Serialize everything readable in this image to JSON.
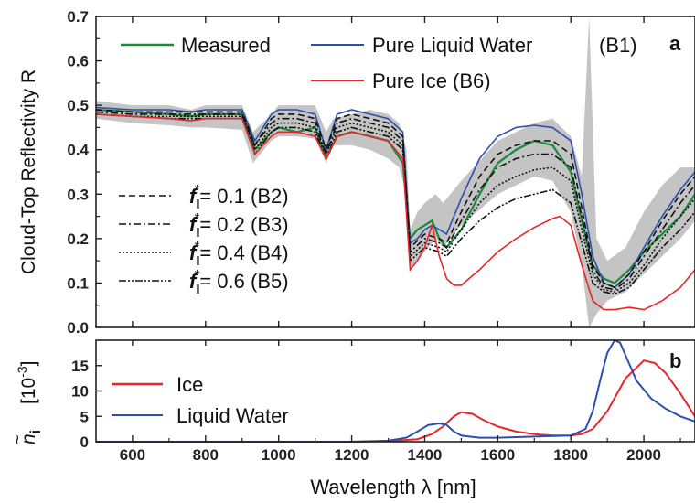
{
  "chart_data": [
    {
      "panel": "a",
      "type": "line",
      "ylabel": "Cloud-Top Reflectivity R",
      "xlim": [
        500,
        2140
      ],
      "ylim": [
        0,
        0.7
      ],
      "yticks": [
        "0.0",
        "0.1",
        "0.2",
        "0.3",
        "0.4",
        "0.5",
        "0.6",
        "0.7"
      ],
      "legend_top": [
        {
          "label": "Measured",
          "color": "#1a8a3a",
          "style": "solid"
        },
        {
          "label": "Pure Liquid Water",
          "color": "#2c4fae",
          "style": "solid"
        },
        {
          "label": "(B1)",
          "color": "#000000",
          "style": "none"
        },
        {
          "label": "Pure Ice (B6)",
          "color": "#e8262a",
          "style": "solid"
        }
      ],
      "legend_mid": [
        {
          "prefix": "f",
          "sub": "I",
          "sup": "*",
          "value": "= 0.1 (B2)",
          "style": "dashed"
        },
        {
          "prefix": "f",
          "sub": "I",
          "sup": "*",
          "value": "= 0.2 (B3)",
          "style": "dashdot"
        },
        {
          "prefix": "f",
          "sub": "I",
          "sup": "*",
          "value": "= 0.4 (B4)",
          "style": "dotted"
        },
        {
          "prefix": "f",
          "sub": "I",
          "sup": "*",
          "value": "= 0.6 (B5)",
          "style": "dashdotdot"
        }
      ],
      "uncertainty_band": {
        "x": [
          500,
          550,
          600,
          700,
          760,
          800,
          900,
          930,
          980,
          1000,
          1050,
          1100,
          1130,
          1150,
          1200,
          1250,
          1300,
          1330,
          1350,
          1360,
          1380,
          1400,
          1430,
          1450,
          1500,
          1600,
          1700,
          1750,
          1800,
          1830,
          1850,
          1870,
          1900,
          1950,
          2000,
          2050,
          2100,
          2140
        ],
        "low": [
          0.47,
          0.465,
          0.46,
          0.455,
          0.45,
          0.45,
          0.445,
          0.37,
          0.42,
          0.43,
          0.43,
          0.425,
          0.37,
          0.41,
          0.41,
          0.4,
          0.38,
          0.36,
          0.3,
          0.13,
          0.15,
          0.17,
          0.2,
          0.18,
          0.23,
          0.3,
          0.34,
          0.33,
          0.26,
          0.14,
          0.0,
          0.03,
          0.06,
          0.08,
          0.12,
          0.16,
          0.2,
          0.24
        ],
        "high": [
          0.51,
          0.505,
          0.5,
          0.5,
          0.49,
          0.5,
          0.5,
          0.44,
          0.48,
          0.5,
          0.5,
          0.5,
          0.44,
          0.47,
          0.48,
          0.49,
          0.48,
          0.46,
          0.4,
          0.22,
          0.26,
          0.28,
          0.3,
          0.28,
          0.33,
          0.42,
          0.46,
          0.47,
          0.43,
          0.34,
          0.7,
          0.2,
          0.15,
          0.18,
          0.26,
          0.32,
          0.36,
          0.36
        ]
      },
      "series": [
        {
          "name": "Measured",
          "color": "#1a8a3a",
          "dash": "",
          "x": [
            500,
            600,
            700,
            760,
            800,
            900,
            935,
            980,
            1000,
            1050,
            1100,
            1130,
            1160,
            1200,
            1250,
            1300,
            1340,
            1360,
            1380,
            1400,
            1420,
            1440,
            1460,
            1500,
            1550,
            1600,
            1650,
            1700,
            1750,
            1800,
            1830,
            1860,
            1890,
            1920,
            1960,
            2000,
            2050,
            2100,
            2140
          ],
          "y": [
            0.49,
            0.485,
            0.48,
            0.475,
            0.48,
            0.48,
            0.4,
            0.44,
            0.45,
            0.44,
            0.45,
            0.38,
            0.43,
            0.44,
            0.43,
            0.42,
            0.37,
            0.2,
            0.22,
            0.23,
            0.24,
            0.2,
            0.18,
            0.22,
            0.3,
            0.37,
            0.4,
            0.42,
            0.41,
            0.35,
            0.24,
            0.14,
            0.11,
            0.1,
            0.13,
            0.17,
            0.21,
            0.25,
            0.3
          ]
        },
        {
          "name": "Pure Liquid Water",
          "color": "#2c4fae",
          "dash": "",
          "x": [
            500,
            600,
            700,
            760,
            800,
            900,
            935,
            980,
            1000,
            1050,
            1100,
            1130,
            1160,
            1200,
            1250,
            1300,
            1340,
            1360,
            1380,
            1400,
            1420,
            1440,
            1460,
            1500,
            1550,
            1600,
            1650,
            1700,
            1750,
            1800,
            1830,
            1860,
            1890,
            1920,
            1960,
            2000,
            2050,
            2100,
            2140
          ],
          "y": [
            0.495,
            0.49,
            0.49,
            0.485,
            0.49,
            0.49,
            0.42,
            0.48,
            0.49,
            0.49,
            0.48,
            0.4,
            0.48,
            0.49,
            0.48,
            0.47,
            0.44,
            0.19,
            0.2,
            0.22,
            0.23,
            0.22,
            0.21,
            0.29,
            0.38,
            0.43,
            0.45,
            0.455,
            0.45,
            0.42,
            0.3,
            0.16,
            0.1,
            0.09,
            0.12,
            0.18,
            0.25,
            0.31,
            0.35
          ]
        },
        {
          "name": "B2",
          "color": "#111111",
          "dash": "7,4",
          "x": [
            500,
            600,
            700,
            800,
            900,
            935,
            980,
            1000,
            1050,
            1100,
            1130,
            1160,
            1200,
            1250,
            1300,
            1340,
            1360,
            1400,
            1440,
            1460,
            1500,
            1550,
            1600,
            1650,
            1700,
            1750,
            1800,
            1830,
            1860,
            1890,
            1920,
            1960,
            2000,
            2050,
            2100,
            2140
          ],
          "y": [
            0.49,
            0.485,
            0.485,
            0.485,
            0.485,
            0.41,
            0.47,
            0.48,
            0.48,
            0.47,
            0.4,
            0.47,
            0.48,
            0.47,
            0.46,
            0.43,
            0.18,
            0.21,
            0.2,
            0.19,
            0.26,
            0.34,
            0.39,
            0.41,
            0.42,
            0.42,
            0.39,
            0.27,
            0.14,
            0.1,
            0.09,
            0.12,
            0.17,
            0.24,
            0.3,
            0.34
          ]
        },
        {
          "name": "B3",
          "color": "#111111",
          "dash": "8,3,2,3",
          "x": [
            500,
            600,
            700,
            800,
            900,
            935,
            980,
            1000,
            1050,
            1100,
            1130,
            1160,
            1200,
            1250,
            1300,
            1340,
            1360,
            1400,
            1440,
            1460,
            1500,
            1550,
            1600,
            1650,
            1700,
            1750,
            1800,
            1830,
            1860,
            1890,
            1920,
            1960,
            2000,
            2050,
            2100,
            2140
          ],
          "y": [
            0.485,
            0.48,
            0.48,
            0.48,
            0.48,
            0.41,
            0.46,
            0.47,
            0.47,
            0.46,
            0.39,
            0.46,
            0.47,
            0.46,
            0.45,
            0.42,
            0.17,
            0.2,
            0.19,
            0.18,
            0.24,
            0.31,
            0.36,
            0.38,
            0.39,
            0.39,
            0.36,
            0.25,
            0.13,
            0.09,
            0.085,
            0.11,
            0.16,
            0.22,
            0.28,
            0.32
          ]
        },
        {
          "name": "B4",
          "color": "#111111",
          "dash": "2,2",
          "x": [
            500,
            600,
            700,
            800,
            900,
            935,
            980,
            1000,
            1050,
            1100,
            1130,
            1160,
            1200,
            1250,
            1300,
            1340,
            1360,
            1400,
            1440,
            1460,
            1500,
            1550,
            1600,
            1650,
            1700,
            1750,
            1800,
            1830,
            1860,
            1890,
            1920,
            1960,
            2000,
            2050,
            2100,
            2140
          ],
          "y": [
            0.48,
            0.475,
            0.475,
            0.475,
            0.475,
            0.4,
            0.45,
            0.46,
            0.46,
            0.45,
            0.39,
            0.45,
            0.46,
            0.45,
            0.44,
            0.41,
            0.16,
            0.19,
            0.18,
            0.17,
            0.22,
            0.28,
            0.32,
            0.34,
            0.355,
            0.36,
            0.33,
            0.22,
            0.12,
            0.085,
            0.08,
            0.1,
            0.14,
            0.2,
            0.25,
            0.29
          ]
        },
        {
          "name": "B5",
          "color": "#111111",
          "dash": "8,2,2,2,2,2",
          "x": [
            500,
            600,
            700,
            800,
            900,
            935,
            980,
            1000,
            1050,
            1100,
            1130,
            1160,
            1200,
            1250,
            1300,
            1340,
            1360,
            1400,
            1440,
            1460,
            1500,
            1550,
            1600,
            1650,
            1700,
            1750,
            1800,
            1830,
            1860,
            1890,
            1920,
            1960,
            2000,
            2050,
            2100,
            2140
          ],
          "y": [
            0.48,
            0.475,
            0.47,
            0.47,
            0.47,
            0.39,
            0.44,
            0.45,
            0.45,
            0.44,
            0.38,
            0.44,
            0.45,
            0.44,
            0.43,
            0.4,
            0.15,
            0.18,
            0.17,
            0.16,
            0.2,
            0.24,
            0.27,
            0.29,
            0.3,
            0.31,
            0.28,
            0.19,
            0.1,
            0.08,
            0.075,
            0.09,
            0.13,
            0.18,
            0.22,
            0.26
          ]
        },
        {
          "name": "Pure Ice (B6)",
          "color": "#e8262a",
          "dash": "",
          "x": [
            500,
            600,
            700,
            760,
            800,
            900,
            935,
            980,
            1000,
            1050,
            1100,
            1130,
            1160,
            1200,
            1250,
            1300,
            1340,
            1360,
            1380,
            1400,
            1420,
            1440,
            1460,
            1480,
            1500,
            1550,
            1600,
            1650,
            1700,
            1750,
            1770,
            1800,
            1830,
            1860,
            1890,
            1920,
            1960,
            2000,
            2050,
            2100,
            2140
          ],
          "y": [
            0.48,
            0.475,
            0.47,
            0.465,
            0.47,
            0.47,
            0.39,
            0.43,
            0.44,
            0.44,
            0.43,
            0.38,
            0.43,
            0.44,
            0.43,
            0.42,
            0.38,
            0.13,
            0.15,
            0.18,
            0.23,
            0.16,
            0.11,
            0.095,
            0.095,
            0.13,
            0.17,
            0.2,
            0.225,
            0.245,
            0.25,
            0.23,
            0.14,
            0.06,
            0.04,
            0.04,
            0.045,
            0.04,
            0.06,
            0.09,
            0.13
          ]
        }
      ]
    },
    {
      "panel": "b",
      "type": "line",
      "xlabel": "Wavelength λ [nm]",
      "ylabel_sym": "n",
      "ylabel_sub": "i",
      "ylabel_unit": "[10",
      "ylabel_exp": "-3",
      "ylabel_close": "]",
      "xlim": [
        500,
        2140
      ],
      "ylim": [
        0,
        20
      ],
      "xticks": [
        "600",
        "800",
        "1000",
        "1200",
        "1400",
        "1600",
        "1800",
        "2000"
      ],
      "yticks": [
        "0",
        "5",
        "10",
        "15"
      ],
      "legend": [
        {
          "label": "Ice",
          "color": "#e8262a"
        },
        {
          "label": "Liquid Water",
          "color": "#2c4fae"
        }
      ],
      "series": [
        {
          "name": "Ice",
          "color": "#e8262a",
          "x": [
            500,
            1200,
            1300,
            1380,
            1420,
            1450,
            1480,
            1500,
            1530,
            1560,
            1600,
            1650,
            1700,
            1750,
            1800,
            1830,
            1860,
            1900,
            1950,
            2000,
            2030,
            2060,
            2100,
            2140
          ],
          "y": [
            0,
            0,
            0.1,
            0.5,
            1.5,
            3.0,
            5.0,
            5.8,
            5.5,
            4.3,
            3.0,
            2.0,
            1.5,
            1.2,
            1.2,
            1.5,
            2.5,
            6.0,
            12.5,
            16.0,
            15.5,
            13.5,
            9.5,
            5.0
          ]
        },
        {
          "name": "Liquid Water",
          "color": "#2c4fae",
          "x": [
            500,
            1200,
            1300,
            1350,
            1380,
            1410,
            1440,
            1460,
            1480,
            1500,
            1550,
            1600,
            1700,
            1800,
            1840,
            1860,
            1880,
            1900,
            1920,
            1935,
            1950,
            1980,
            2020,
            2060,
            2100,
            2140
          ],
          "y": [
            0,
            0,
            0.2,
            0.8,
            2.0,
            3.3,
            3.6,
            3.3,
            2.0,
            1.2,
            0.8,
            0.8,
            1.0,
            1.2,
            2.5,
            6.0,
            12.0,
            17.5,
            20.0,
            19.5,
            17.0,
            12.0,
            8.5,
            6.5,
            5.0,
            4.0
          ]
        }
      ]
    }
  ],
  "panel_letters": {
    "a": "a",
    "b": "b"
  }
}
